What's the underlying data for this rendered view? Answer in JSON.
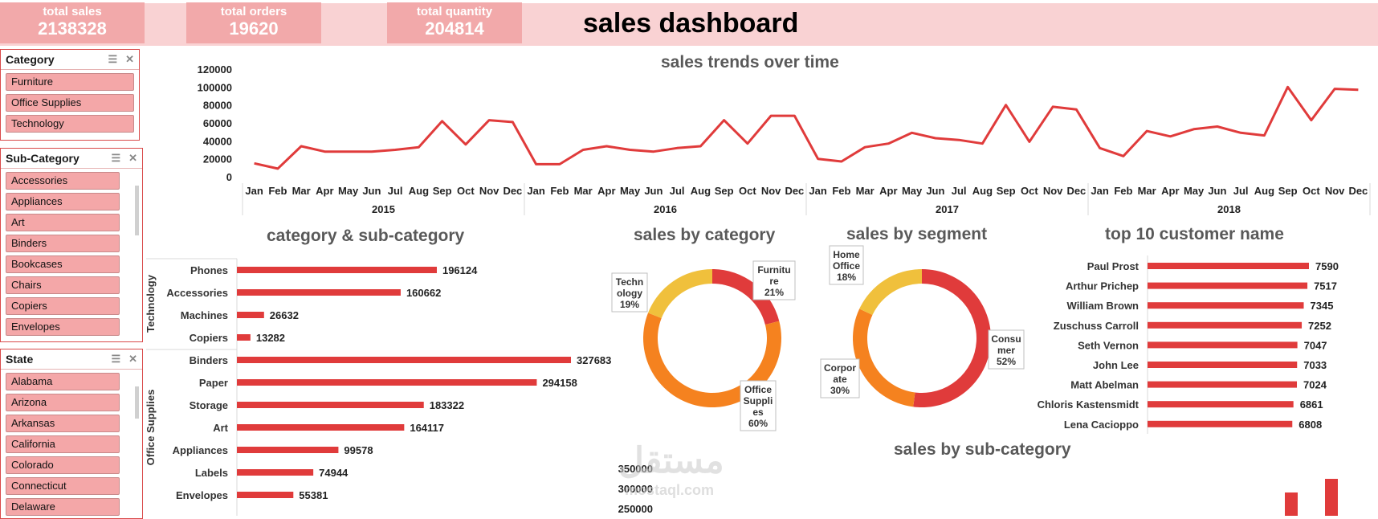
{
  "kpis": [
    {
      "label": "total sales",
      "value": "2138328"
    },
    {
      "label": "total orders",
      "value": "19620"
    },
    {
      "label": "total quantity",
      "value": "204814"
    }
  ],
  "dashboard_title": "sales dashboard",
  "slicers": {
    "category": {
      "title": "Category",
      "items": [
        "Furniture",
        "Office Supplies",
        "Technology"
      ]
    },
    "subcategory": {
      "title": "Sub-Category",
      "items": [
        "Accessories",
        "Appliances",
        "Art",
        "Binders",
        "Bookcases",
        "Chairs",
        "Copiers",
        "Envelopes"
      ]
    },
    "state": {
      "title": "State",
      "items": [
        "Alabama",
        "Arizona",
        "Arkansas",
        "California",
        "Colorado",
        "Connecticut",
        "Delaware"
      ]
    }
  },
  "colors": {
    "accent": "#e03b3b",
    "kpi": "#f2a9aa",
    "band": "#f9d2d3",
    "yellow": "#f0c03c",
    "orange": "#f5821f"
  },
  "watermark": {
    "text": "مستقل",
    "url": "mostaql.com"
  },
  "chart_data": [
    {
      "type": "line",
      "title": "sales trends over time",
      "months": [
        "Jan",
        "Feb",
        "Mar",
        "Apr",
        "May",
        "Jun",
        "Jul",
        "Aug",
        "Sep",
        "Oct",
        "Nov",
        "Dec"
      ],
      "years": [
        "2015",
        "2016",
        "2017",
        "2018"
      ],
      "values": [
        15000,
        9000,
        34000,
        28000,
        28000,
        28000,
        30000,
        33000,
        62000,
        36000,
        63000,
        61000,
        14000,
        14000,
        30000,
        34000,
        30000,
        28000,
        32000,
        34000,
        63000,
        37000,
        68000,
        68000,
        20000,
        17000,
        33000,
        37000,
        49000,
        43000,
        41000,
        37000,
        80000,
        39000,
        78000,
        75000,
        32000,
        23000,
        51000,
        45000,
        53000,
        56000,
        49000,
        46000,
        100000,
        63000,
        98000,
        97000
      ],
      "yticks": [
        "120000",
        "100000",
        "80000",
        "60000",
        "40000",
        "20000",
        "0"
      ],
      "ylim": [
        0,
        120000
      ]
    },
    {
      "type": "bar",
      "title": "category & sub-category",
      "groups": [
        {
          "name": "Technology",
          "categories": [
            "Phones",
            "Accessories",
            "Machines",
            "Copiers"
          ],
          "values": [
            196124,
            160662,
            26632,
            13282
          ]
        },
        {
          "name": "Office Supplies",
          "categories": [
            "Binders",
            "Paper",
            "Storage",
            "Art",
            "Appliances",
            "Labels",
            "Envelopes"
          ],
          "values": [
            327683,
            294158,
            183322,
            164117,
            99578,
            74944,
            55381
          ]
        }
      ]
    },
    {
      "type": "pie",
      "title": "sales by category",
      "slices": [
        {
          "name": "Furniture",
          "pct": 21,
          "color": "#e03b3b",
          "label": [
            "Furnitu",
            "re",
            "21%"
          ]
        },
        {
          "name": "Office Supplies",
          "pct": 60,
          "color": "#f5821f",
          "label": [
            "Office",
            "Suppli",
            "es",
            "60%"
          ]
        },
        {
          "name": "Technology",
          "pct": 19,
          "color": "#f0c03c",
          "label": [
            "Techn",
            "ology",
            "19%"
          ]
        }
      ]
    },
    {
      "type": "pie",
      "title": "sales by segment",
      "slices": [
        {
          "name": "Consumer",
          "pct": 52,
          "color": "#e03b3b",
          "label": [
            "Consu",
            "mer",
            "52%"
          ]
        },
        {
          "name": "Corporate",
          "pct": 30,
          "color": "#f5821f",
          "label": [
            "Corpor",
            "ate",
            "30%"
          ]
        },
        {
          "name": "Home Office",
          "pct": 18,
          "color": "#f0c03c",
          "label": [
            "Home",
            "Office",
            "18%"
          ]
        }
      ]
    },
    {
      "type": "bar",
      "title": "top 10 customer name",
      "categories": [
        "Paul Prost",
        "Arthur Prichep",
        "William Brown",
        "Zuschuss Carroll",
        "Seth Vernon",
        "John Lee",
        "Matt Abelman",
        "Chloris Kastensmidt",
        "Lena Cacioppo"
      ],
      "values": [
        7590,
        7517,
        7345,
        7252,
        7047,
        7033,
        7024,
        6861,
        6808
      ]
    },
    {
      "type": "bar",
      "title": "sales by sub-category",
      "yticks": [
        "350000",
        "300000",
        "250000"
      ]
    }
  ]
}
